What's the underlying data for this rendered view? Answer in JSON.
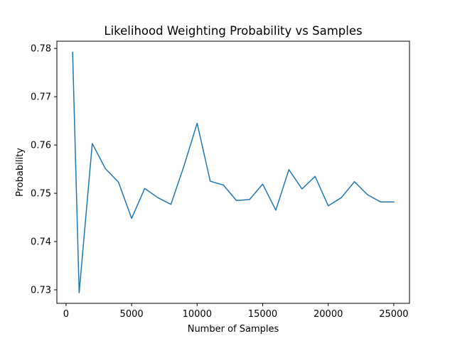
{
  "chart_data": {
    "type": "line",
    "title": "Likelihood Weighting Probability vs Samples",
    "xlabel": "Number of Samples",
    "ylabel": "Probability",
    "xlim": [
      -700,
      26200
    ],
    "ylim": [
      0.7272,
      0.7815
    ],
    "xticks": [
      0,
      5000,
      10000,
      15000,
      20000,
      25000
    ],
    "xtick_labels": [
      "0",
      "5000",
      "10000",
      "15000",
      "20000",
      "25000"
    ],
    "yticks": [
      0.73,
      0.74,
      0.75,
      0.76,
      0.77,
      0.78
    ],
    "ytick_labels": [
      "0.73",
      "0.74",
      "0.75",
      "0.76",
      "0.77",
      "0.78"
    ],
    "grid": false,
    "series": [
      {
        "color": "#1f77b4",
        "x": [
          500,
          1000,
          2000,
          3000,
          4000,
          5000,
          6000,
          7000,
          8000,
          9000,
          10000,
          11000,
          12000,
          13000,
          14000,
          15000,
          16000,
          17000,
          18000,
          19000,
          20000,
          21000,
          22000,
          23000,
          24000,
          25000
        ],
        "y": [
          0.7792,
          0.7294,
          0.7603,
          0.7551,
          0.7523,
          0.7448,
          0.751,
          0.7491,
          0.7477,
          0.7557,
          0.7645,
          0.7525,
          0.7517,
          0.7485,
          0.7487,
          0.7519,
          0.7465,
          0.7549,
          0.7509,
          0.7535,
          0.7474,
          0.7491,
          0.7524,
          0.7497,
          0.7482,
          0.7482
        ]
      }
    ]
  }
}
